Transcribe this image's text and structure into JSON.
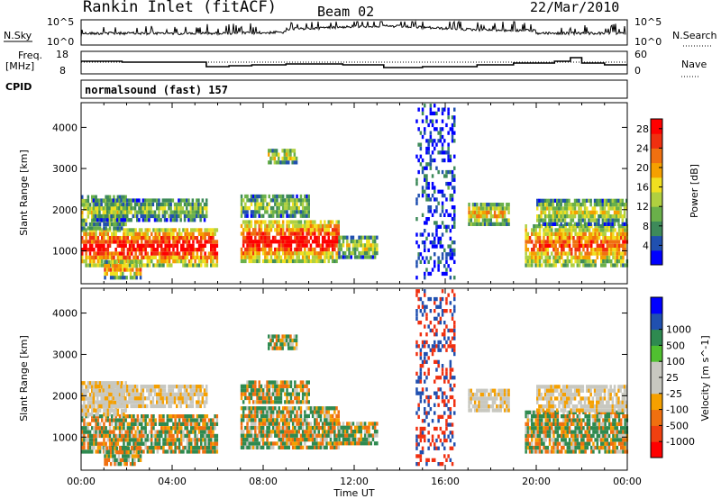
{
  "header": {
    "title": "Rankin Inlet (fitACF)",
    "beam": "Beam 02",
    "date": "22/Mar/2010"
  },
  "noise_panel": {
    "left_label": "N.Sky",
    "left_ticks": [
      "10^5",
      "10^0"
    ],
    "right_label": "N.Search",
    "right_ticks": [
      "10^5",
      "10^0"
    ]
  },
  "freq_panel": {
    "left_label_1": "Freq.",
    "left_label_2": "[MHz]",
    "left_ticks": [
      "18",
      "8"
    ],
    "right_label": "Nave",
    "right_ticks": [
      "60",
      "0"
    ]
  },
  "cpid_panel": {
    "label": "CPID",
    "mode_text": "normalsound (fast) 157"
  },
  "colors": {
    "power": [
      "#0000ff",
      "#2050b0",
      "#3e8a5a",
      "#6ab04a",
      "#b0d040",
      "#f0e020",
      "#f5a000",
      "#f07010",
      "#f03010",
      "#ff0000"
    ],
    "velocity": [
      "#ff0000",
      "#f04010",
      "#f07010",
      "#f5a000",
      "#c8c8c0",
      "#c8c8c0",
      "#50c030",
      "#2e8a50",
      "#2050b0",
      "#0000ff"
    ]
  },
  "chart_data": [
    {
      "type": "heatmap",
      "name": "power",
      "ylabel": "Slant Range [km]",
      "yticks": [
        "1000",
        "2000",
        "3000",
        "4000"
      ],
      "ylim": [
        200,
        4600
      ],
      "colorbar_label": "Power [dB]",
      "colorbar_ticks": [
        "4",
        "8",
        "12",
        "16",
        "20",
        "24",
        "28"
      ],
      "colorbar_range": [
        0,
        30
      ]
    },
    {
      "type": "heatmap",
      "name": "velocity",
      "ylabel": "Slant Range [km]",
      "yticks": [
        "1000",
        "2000",
        "3000",
        "4000"
      ],
      "ylim": [
        200,
        4600
      ],
      "colorbar_label": "Velocity [m s^-1]",
      "colorbar_ticks": [
        "-1000",
        "-500",
        "-100",
        "-25",
        "25",
        "100",
        "500",
        "1000"
      ]
    }
  ],
  "time_axis": {
    "xlabel": "Time UT",
    "ticks": [
      "00:00",
      "04:00",
      "08:00",
      "12:00",
      "16:00",
      "20:00",
      "00:00"
    ],
    "range_hours": [
      0,
      24
    ]
  }
}
